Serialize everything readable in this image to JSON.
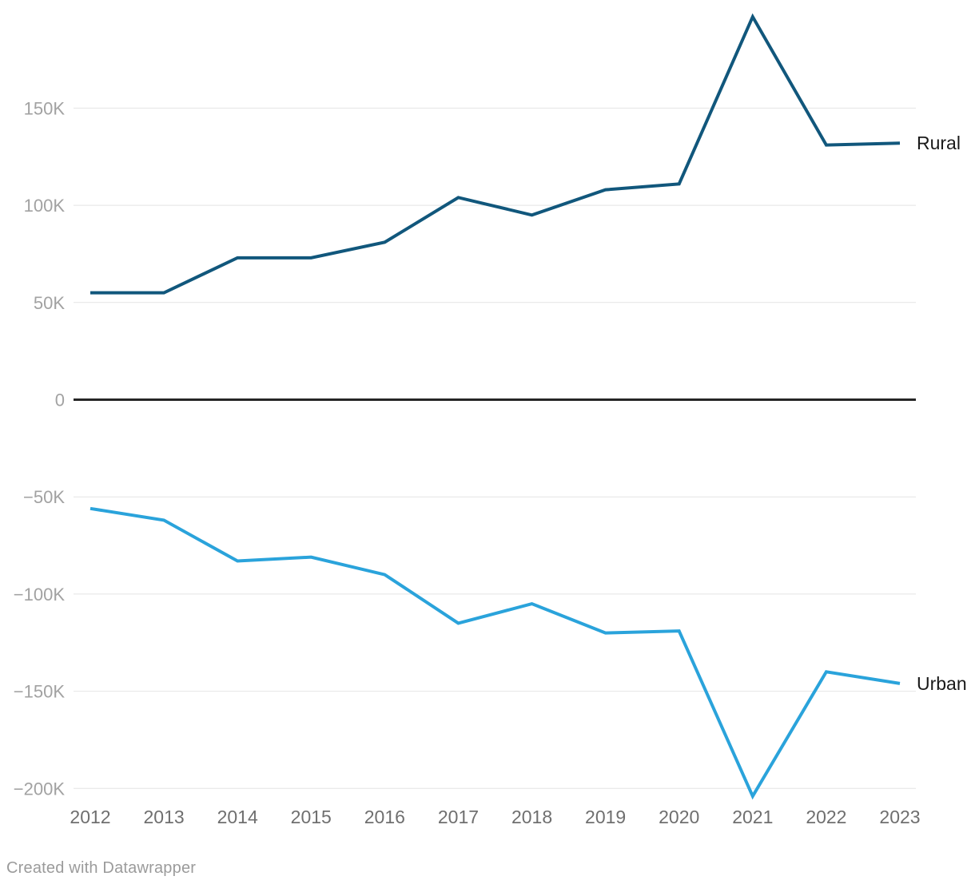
{
  "chart_data": {
    "type": "line",
    "x": [
      "2012",
      "2013",
      "2014",
      "2015",
      "2016",
      "2017",
      "2018",
      "2019",
      "2020",
      "2021",
      "2022",
      "2023"
    ],
    "series": [
      {
        "name": "Rural",
        "color": "#11577c",
        "values": [
          55000,
          55000,
          73000,
          73000,
          81000,
          104000,
          95000,
          108000,
          111000,
          197000,
          131000,
          132000
        ]
      },
      {
        "name": "Urban",
        "color": "#2aa3db",
        "values": [
          -56000,
          -62000,
          -83000,
          -81000,
          -90000,
          -115000,
          -105000,
          -120000,
          -119000,
          -204000,
          -140000,
          -146000
        ]
      }
    ],
    "y_ticks": {
      "values": [
        150000,
        100000,
        50000,
        0,
        -50000,
        -100000,
        -150000,
        -200000
      ],
      "labels": [
        "150K",
        "100K",
        "50K",
        "0",
        "−50K",
        "−100K",
        "−150K",
        "−200K"
      ]
    },
    "ylim": [
      -210000,
      200000
    ],
    "title": "",
    "xlabel": "",
    "ylabel": "",
    "layout": {
      "grid": true,
      "zero_baseline": true,
      "series_label_position": "right-of-line-end",
      "legend": "none"
    }
  },
  "footer": {
    "credit": "Created with Datawrapper"
  }
}
